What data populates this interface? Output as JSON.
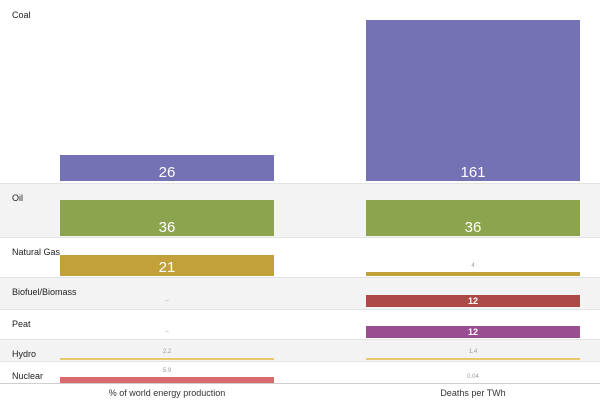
{
  "chart_data": {
    "type": "bar",
    "columns": [
      "% of world energy production",
      "Deaths per TWh"
    ],
    "rows": [
      {
        "label": "Coal",
        "values": [
          26,
          161
        ],
        "value_labels": [
          "26",
          "161"
        ],
        "color": "#7472b5"
      },
      {
        "label": "Oil",
        "values": [
          36,
          36
        ],
        "value_labels": [
          "36",
          "36"
        ],
        "color": "#8da44f"
      },
      {
        "label": "Natural Gas",
        "values": [
          21,
          4
        ],
        "value_labels": [
          "21",
          "4"
        ],
        "color": "#c2a13b"
      },
      {
        "label": "Biofuel/Biomass",
        "values": [
          null,
          12
        ],
        "value_labels": [
          "–",
          "12"
        ],
        "color": "#ad4a47"
      },
      {
        "label": "Peat",
        "values": [
          null,
          12
        ],
        "value_labels": [
          "–",
          "12"
        ],
        "color": "#9a4e91"
      },
      {
        "label": "Hydro",
        "values": [
          2.2,
          1.4
        ],
        "value_labels": [
          "2.2",
          "1.4"
        ],
        "color": "#e8c86c"
      },
      {
        "label": "Nuclear",
        "values": [
          5.9,
          0.04
        ],
        "value_labels": [
          "5.9",
          "0.04"
        ],
        "color": "#d96b6f"
      }
    ]
  }
}
